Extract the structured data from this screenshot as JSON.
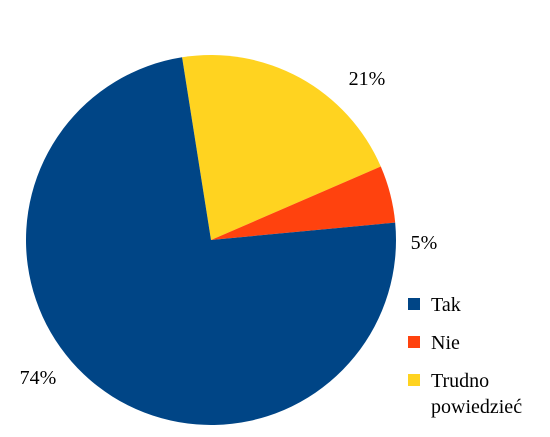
{
  "chart_data": {
    "type": "pie",
    "title": "",
    "slices": [
      {
        "label": "Tak",
        "value": 74,
        "display": "74%",
        "color": "#004586"
      },
      {
        "label": "Nie",
        "value": 5,
        "display": "5%",
        "color": "#ff420e"
      },
      {
        "label": "Trudno powiedzieć",
        "value": 21,
        "display": "21%",
        "color": "#ffd320"
      }
    ],
    "legend": {
      "placement": "bottom-right",
      "entries": [
        {
          "lines": [
            "Tak"
          ],
          "color": "#004586"
        },
        {
          "lines": [
            "Nie"
          ],
          "color": "#ff420e"
        },
        {
          "lines": [
            "Trudno",
            "powiedzieć"
          ],
          "color": "#ffd320"
        }
      ]
    }
  }
}
